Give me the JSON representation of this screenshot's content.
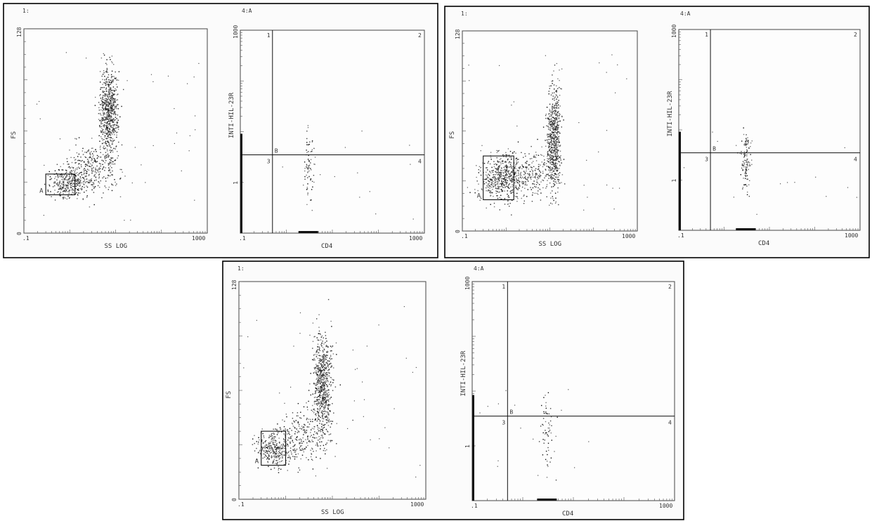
{
  "chart_data": [
    {
      "type": "scatter",
      "panel_header": "1:",
      "xlabel": "SS LOG",
      "ylabel": "FS",
      "x_scale": "log",
      "xlim": [
        0.1,
        1000
      ],
      "x_ticks": [
        ".1",
        "1000"
      ],
      "ylim": [
        0,
        128
      ],
      "y_ticks": [
        "0",
        "128"
      ],
      "gate": {
        "label": "A",
        "x": [
          0.3,
          1.3
        ],
        "y": [
          24,
          37
        ]
      },
      "clusters": [
        {
          "x_center": 1.0,
          "y_center": 32,
          "x_spread_decades": 0.22,
          "y_spread": 5,
          "count": 320
        },
        {
          "x_center": 7.0,
          "y_center": 75,
          "x_spread_decades": 0.1,
          "y_spread": 14,
          "count": 700
        },
        {
          "x_center": 3.0,
          "y_center": 42,
          "x_spread_decades": 0.3,
          "y_spread": 8,
          "count": 250
        }
      ]
    },
    {
      "type": "scatter",
      "panel_header": "4:A",
      "xlabel": "CD4",
      "ylabel": "INTI-HIL-23R",
      "x_scale": "log",
      "xlim": [
        0.1,
        1000
      ],
      "x_ticks": [
        ".1",
        "1000"
      ],
      "y_scale": "log",
      "ylim": [
        0.1,
        1000
      ],
      "y_ticks": [
        "1000",
        "1"
      ],
      "quadrant_split": {
        "x": 0.5,
        "y": 3.5,
        "label": "B"
      },
      "quadrants": [
        "1",
        "2",
        "3",
        "4"
      ],
      "clusters": [
        {
          "x_center": 3.0,
          "y_center": 2.2,
          "x_spread_decades": 0.07,
          "y_spread_decades": 0.35,
          "count": 70
        }
      ]
    },
    {
      "type": "scatter",
      "panel_header": "1:",
      "xlabel": "SS LOG",
      "ylabel": "FS",
      "x_scale": "log",
      "xlim": [
        0.1,
        1000
      ],
      "x_ticks": [
        ".1",
        "1000"
      ],
      "ylim": [
        0,
        128
      ],
      "y_ticks": [
        "0",
        "128"
      ],
      "gate": {
        "label": "A",
        "x": [
          0.3,
          1.5
        ],
        "y": [
          20,
          48
        ]
      },
      "clusters": [
        {
          "x_center": 0.8,
          "y_center": 34,
          "x_spread_decades": 0.25,
          "y_spread": 7,
          "count": 450
        },
        {
          "x_center": 12.0,
          "y_center": 58,
          "x_spread_decades": 0.08,
          "y_spread": 16,
          "count": 650
        },
        {
          "x_center": 3.0,
          "y_center": 38,
          "x_spread_decades": 0.3,
          "y_spread": 8,
          "count": 250
        }
      ]
    },
    {
      "type": "scatter",
      "panel_header": "4:A",
      "xlabel": "CD4",
      "ylabel": "INTI-HIL-23R",
      "x_scale": "log",
      "xlim": [
        0.1,
        1000
      ],
      "x_ticks": [
        ".1",
        "1000"
      ],
      "y_scale": "log",
      "ylim": [
        0.1,
        1000
      ],
      "y_ticks": [
        "1000",
        "1"
      ],
      "quadrant_split": {
        "x": 0.5,
        "y": 3.5,
        "label": "B"
      },
      "quadrants": [
        "1",
        "2",
        "3",
        "4"
      ],
      "clusters": [
        {
          "x_center": 3.0,
          "y_center": 2.5,
          "x_spread_decades": 0.05,
          "y_spread_decades": 0.35,
          "count": 110
        }
      ]
    },
    {
      "type": "scatter",
      "panel_header": "1:",
      "xlabel": "SS LOG",
      "ylabel": "FS",
      "x_scale": "log",
      "xlim": [
        0.1,
        1000
      ],
      "x_ticks": [
        ".1",
        "1000"
      ],
      "ylim": [
        0,
        128
      ],
      "y_ticks": [
        "0",
        "128"
      ],
      "gate": {
        "label": "A",
        "x": [
          0.3,
          1.0
        ],
        "y": [
          20,
          40
        ]
      },
      "clusters": [
        {
          "x_center": 0.6,
          "y_center": 30,
          "x_spread_decades": 0.2,
          "y_spread": 5,
          "count": 300
        },
        {
          "x_center": 6.0,
          "y_center": 68,
          "x_spread_decades": 0.1,
          "y_spread": 14,
          "count": 650
        },
        {
          "x_center": 2.5,
          "y_center": 38,
          "x_spread_decades": 0.3,
          "y_spread": 8,
          "count": 250
        }
      ]
    },
    {
      "type": "scatter",
      "panel_header": "4:A",
      "xlabel": "CD4",
      "ylabel": "INTI-HIL-23R",
      "x_scale": "log",
      "xlim": [
        0.1,
        1000
      ],
      "x_ticks": [
        ".1",
        "1000"
      ],
      "y_scale": "log",
      "ylim": [
        0.1,
        1000
      ],
      "y_ticks": [
        "1000",
        "1"
      ],
      "quadrant_split": {
        "x": 0.5,
        "y": 3.5,
        "label": "B"
      },
      "quadrants": [
        "1",
        "2",
        "3",
        "4"
      ],
      "clusters": [
        {
          "x_center": 3.0,
          "y_center": 2.0,
          "x_spread_decades": 0.07,
          "y_spread_decades": 0.35,
          "count": 60
        }
      ]
    }
  ]
}
